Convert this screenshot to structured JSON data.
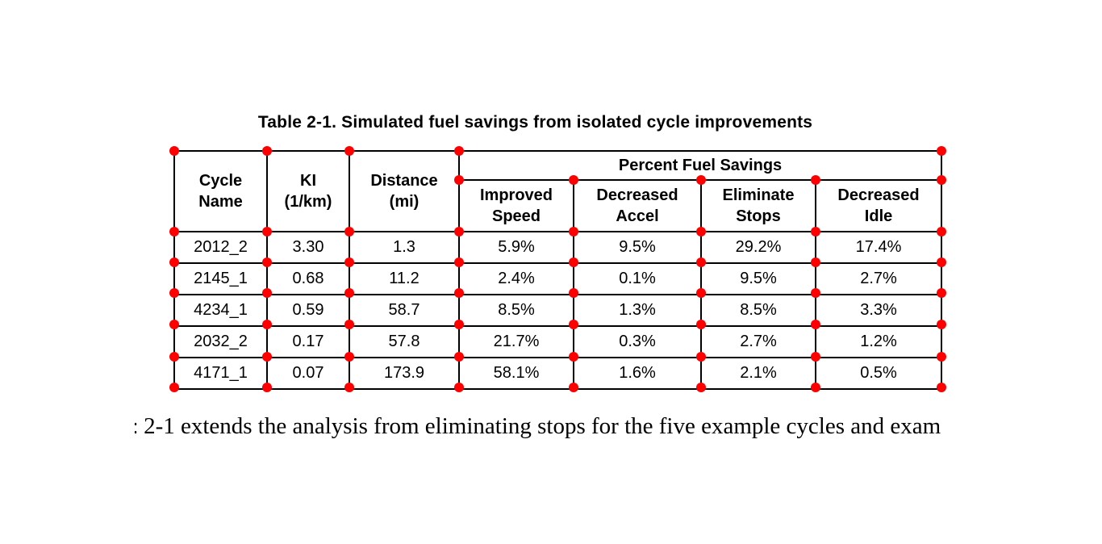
{
  "caption": "Table 2-1. Simulated fuel savings from isolated cycle improvements",
  "table": {
    "group_header": "Percent Fuel Savings",
    "col_headers": {
      "cycle_name": "Cycle\nName",
      "ki": "KI\n(1/km)",
      "distance": "Distance\n(mi)",
      "improved_speed": "Improved\nSpeed",
      "decreased_accel": "Decreased\nAccel",
      "eliminate_stops": "Eliminate\nStops",
      "decreased_idle": "Decreased\nIdle"
    },
    "rows": [
      [
        "2012_2",
        "3.30",
        "1.3",
        "5.9%",
        "9.5%",
        "29.2%",
        "17.4%"
      ],
      [
        "2145_1",
        "0.68",
        "11.2",
        "2.4%",
        "0.1%",
        "9.5%",
        "2.7%"
      ],
      [
        "4234_1",
        "0.59",
        "58.7",
        "8.5%",
        "1.3%",
        "8.5%",
        "3.3%"
      ],
      [
        "2032_2",
        "0.17",
        "57.8",
        "21.7%",
        "0.3%",
        "2.7%",
        "1.2%"
      ],
      [
        "4171_1",
        "0.07",
        "173.9",
        "58.1%",
        "1.6%",
        "2.1%",
        "0.5%"
      ]
    ]
  },
  "body": {
    "clipped_fragment": ":",
    "text": "2-1 extends the analysis from eliminating stops for the five example cycles and exam"
  },
  "annotation": {
    "dot_color": "#ff0000",
    "line_color": "#000000",
    "text_color": "#000000"
  }
}
